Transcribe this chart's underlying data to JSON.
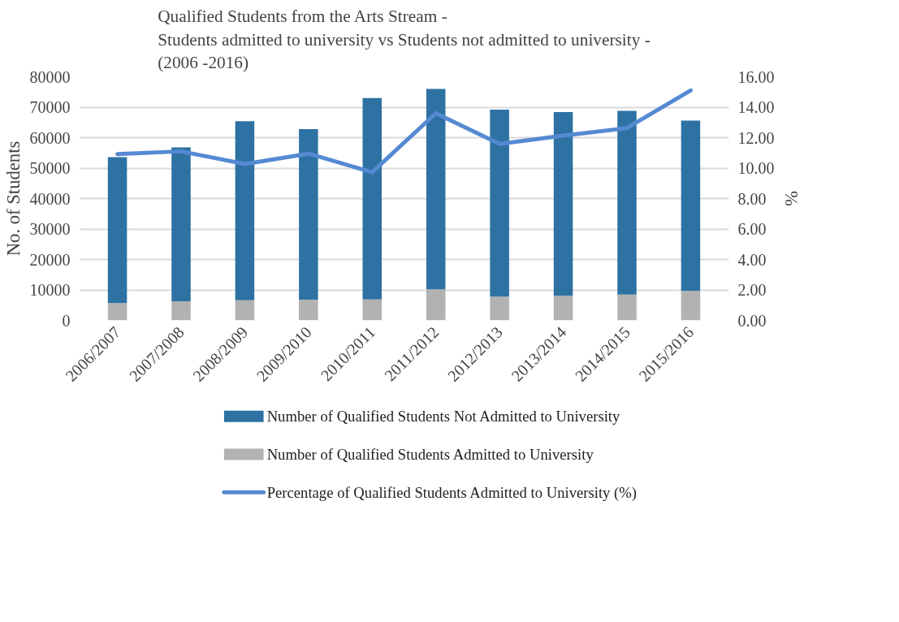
{
  "chart_data": {
    "type": "bar",
    "stacked": true,
    "title": "Qualified Students from the Arts Stream -\nStudents admitted to university vs Students not admitted to university -\n(2006 -2016)",
    "ylabel": "No. of Students",
    "y2label": "%",
    "categories": [
      "2006/2007",
      "2007/2008",
      "2008/2009",
      "2009/2010",
      "2010/2011",
      "2011/2012",
      "2012/2013",
      "2013/2014",
      "2014/2015",
      "2015/2016"
    ],
    "series": [
      {
        "name": "Number of Qualified Students Admitted to University",
        "color": "#b2b2b2",
        "values": [
          5700,
          6300,
          6600,
          6800,
          6900,
          10200,
          7800,
          8100,
          8500,
          9700
        ]
      },
      {
        "name": "Number of Qualified Students Not Admitted to University",
        "color": "#2e72a3",
        "values": [
          47900,
          50500,
          58800,
          56000,
          66100,
          65800,
          61400,
          60300,
          60300,
          55900
        ]
      },
      {
        "name": "Percentage of Qualified Students Admitted to University (%)",
        "type": "line",
        "axis": "y2",
        "color": "#558ad3",
        "values": [
          10.92,
          11.1,
          10.27,
          10.95,
          9.73,
          13.6,
          11.59,
          12.13,
          12.63,
          15.1
        ]
      }
    ],
    "ylim": [
      0,
      80000
    ],
    "yticks": [
      0,
      10000,
      20000,
      30000,
      40000,
      50000,
      60000,
      70000,
      80000
    ],
    "y2lim": [
      0,
      16
    ],
    "y2ticks": [
      {
        "value": 0,
        "label": "0.00"
      },
      {
        "value": 2,
        "label": "2.00"
      },
      {
        "value": 4,
        "label": "4.00"
      },
      {
        "value": 6,
        "label": "6.00"
      },
      {
        "value": 8,
        "label": "8.00"
      },
      {
        "value": 10,
        "label": "10.00"
      },
      {
        "value": 12,
        "label": "12.00"
      },
      {
        "value": 14,
        "label": "14.00"
      },
      {
        "value": 16,
        "label": "16.00"
      }
    ],
    "grid": "y",
    "legend": "bottom",
    "line_style": "solid",
    "marker": "none"
  }
}
